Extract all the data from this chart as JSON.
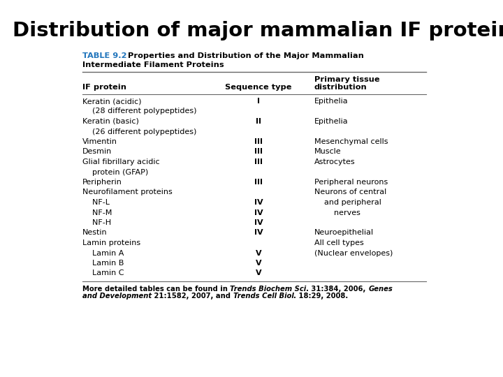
{
  "title": "Distribution of major mammalian IF proteins",
  "table_label_blue": "TABLE 9.2",
  "table_label_rest": "  Properties and Distribution of the Major Mammalian",
  "table_label_line2": "Intermediate Filament Proteins",
  "col_headers": [
    "IF protein",
    "Sequence type",
    "Primary tissue\ndistribution"
  ],
  "rows": [
    {
      "protein": "Keratin (acidic)",
      "seq": "I",
      "dist": "Epithelia"
    },
    {
      "protein": "    (28 different polypeptides)",
      "seq": "",
      "dist": ""
    },
    {
      "protein": "Keratin (basic)",
      "seq": "II",
      "dist": "Epithelia"
    },
    {
      "protein": "    (26 different polypeptides)",
      "seq": "",
      "dist": ""
    },
    {
      "protein": "Vimentin",
      "seq": "III",
      "dist": "Mesenchymal cells"
    },
    {
      "protein": "Desmin",
      "seq": "III",
      "dist": "Muscle"
    },
    {
      "protein": "Glial fibrillary acidic",
      "seq": "III",
      "dist": "Astrocytes"
    },
    {
      "protein": "    protein (GFAP)",
      "seq": "",
      "dist": ""
    },
    {
      "protein": "Peripherin",
      "seq": "III",
      "dist": "Peripheral neurons"
    },
    {
      "protein": "Neurofilament proteins",
      "seq": "",
      "dist": "Neurons of central"
    },
    {
      "protein": "    NF-L",
      "seq": "IV",
      "dist": "    and peripheral"
    },
    {
      "protein": "    NF-M",
      "seq": "IV",
      "dist": "        nerves"
    },
    {
      "protein": "    NF-H",
      "seq": "IV",
      "dist": ""
    },
    {
      "protein": "Nestin",
      "seq": "IV",
      "dist": "Neuroepithelial"
    },
    {
      "protein": "Lamin proteins",
      "seq": "",
      "dist": "All cell types"
    },
    {
      "protein": "    Lamin A",
      "seq": "V",
      "dist": "(Nuclear envelopes)"
    },
    {
      "protein": "    Lamin B",
      "seq": "V",
      "dist": ""
    },
    {
      "protein": "    Lamin C",
      "seq": "V",
      "dist": ""
    }
  ],
  "bg_color": "#ffffff",
  "title_color": "#000000",
  "table_label_color": "#2175bc",
  "line_color": "#666666",
  "text_color": "#000000"
}
